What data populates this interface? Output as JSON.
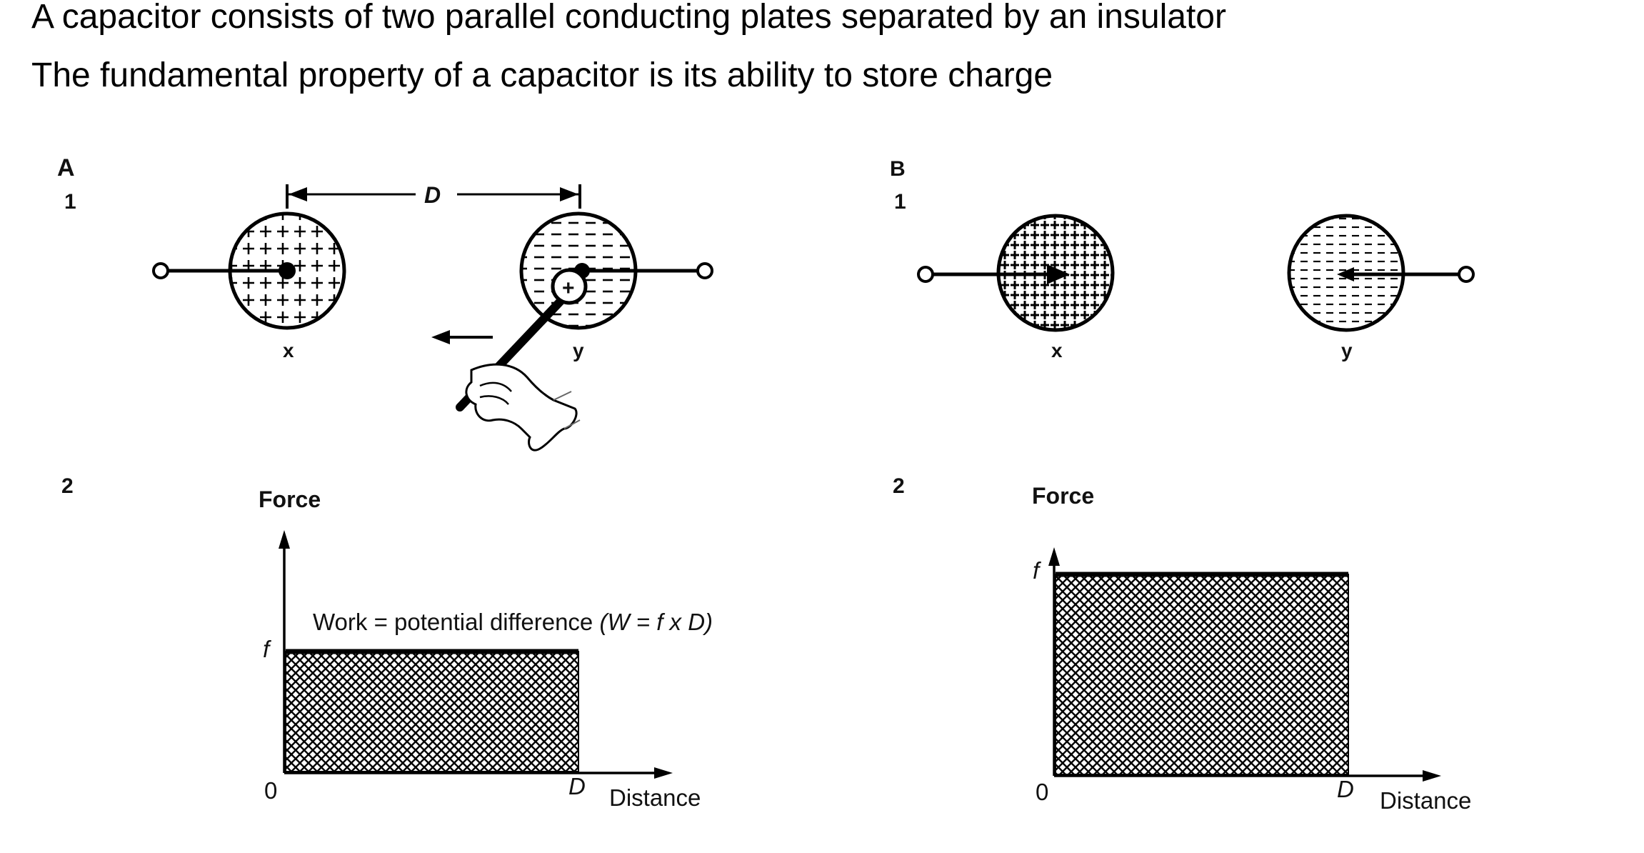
{
  "header": {
    "line1": "A capacitor consists of two parallel conducting plates separated by an insulator",
    "line2": "The fundamental property of a capacitor is its ability to store charge"
  },
  "panelA": {
    "letter": "A",
    "row1": "1",
    "row2": "2",
    "sphere_x_label": "x",
    "sphere_y_label": "y",
    "distance_label": "D",
    "probe_charge": "+",
    "graph": {
      "y_axis_label": "Force",
      "f_label": "f",
      "zero_label": "0",
      "d_label": "D",
      "x_axis_label": "Distance",
      "annotation_work": "Work",
      "annotation_rest": "= potential difference",
      "annotation_formula": "(W = f x D)",
      "force_level": 0.6,
      "distance_end": 1.0
    }
  },
  "panelB": {
    "letter": "B",
    "row1": "1",
    "row2": "2",
    "sphere_x_label": "x",
    "sphere_y_label": "y",
    "graph": {
      "y_axis_label": "Force",
      "f_label": "f",
      "zero_label": "0",
      "d_label": "D",
      "x_axis_label": "Distance",
      "force_level": 1.0,
      "distance_end": 1.0
    }
  }
}
